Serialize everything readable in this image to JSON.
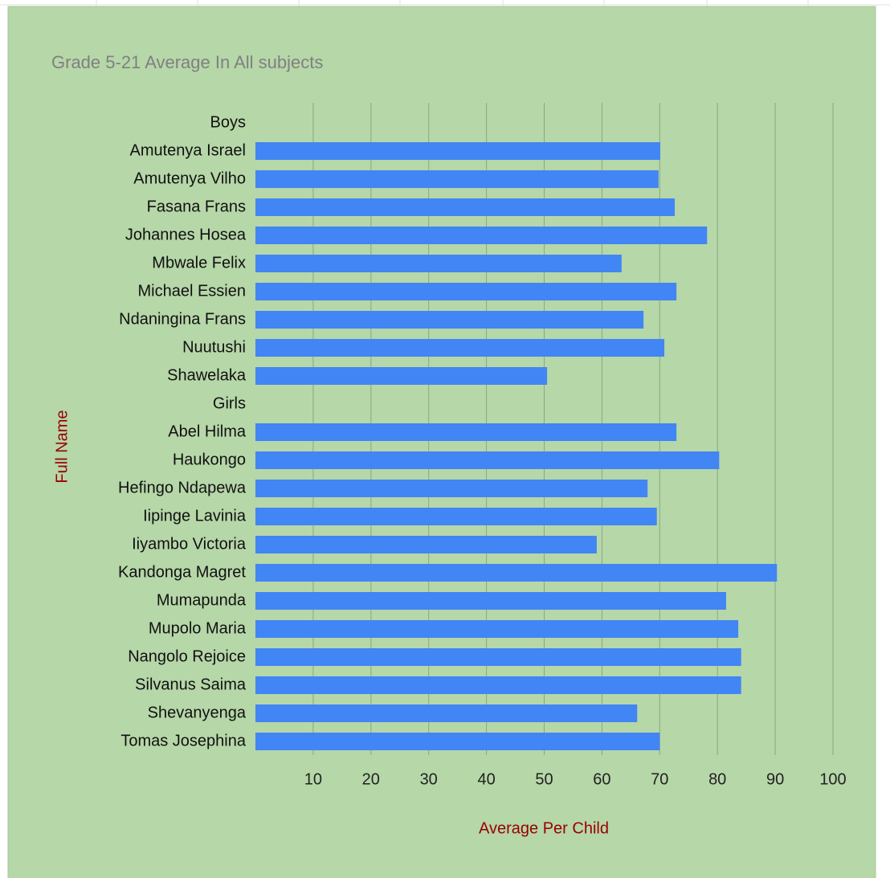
{
  "chart_data": {
    "type": "bar",
    "orientation": "horizontal",
    "title": "Grade 5-21 Average In All subjects",
    "x_label": "Average Per Child",
    "y_label": "Full Name",
    "categories": [
      "Boys",
      "Amutenya Israel",
      "Amutenya Vilho",
      "Fasana Frans",
      "Johannes Hosea",
      "Mbwale Felix",
      "Michael Essien",
      "Ndaningina Frans",
      "Nuutushi",
      "Shawelaka",
      "Girls",
      "Abel Hilma",
      "Haukongo",
      "Hefingo Ndapewa",
      "Iipinge Lavinia",
      "Iiyambo Victoria",
      "Kandonga Magret",
      "Mumapunda",
      "Mupolo Maria",
      "Nangolo Rejoice",
      "Silvanus Saima",
      "Shevanyenga",
      "Tomas Josephina"
    ],
    "values": [
      null,
      70.1,
      69.8,
      72.6,
      78.2,
      63.4,
      72.9,
      67.2,
      70.8,
      50.5,
      null,
      72.9,
      80.3,
      67.9,
      69.5,
      59.1,
      90.3,
      81.5,
      83.6,
      84.1,
      84.1,
      66.1,
      70.0
    ],
    "color": "#4285f4",
    "xlim": [
      0,
      100
    ],
    "xticks": [
      10,
      20,
      30,
      40,
      50,
      60,
      70,
      80,
      90,
      100
    ],
    "grid": true
  }
}
